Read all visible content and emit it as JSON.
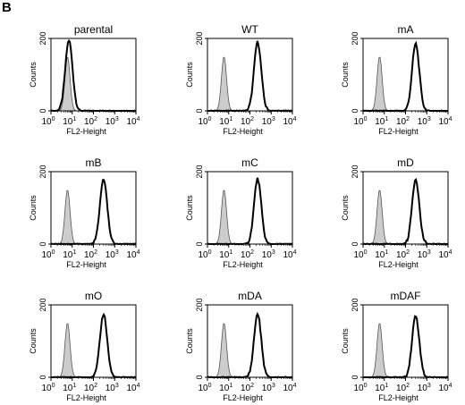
{
  "panel_label": "B",
  "chart_data": [
    {
      "type": "area",
      "title": "parental",
      "xlabel": "FL2-Height",
      "ylabel": "Counts",
      "x_scale": "log",
      "xlim": [
        1,
        10000
      ],
      "ylim": [
        0,
        200
      ],
      "xticks": [
        "10^0",
        "10^1",
        "10^2",
        "10^3",
        "10^4"
      ],
      "yticks": [
        0,
        200
      ],
      "grid": false,
      "series": [
        {
          "fill": "#cccccc",
          "peak_x": 6,
          "peak_y": 150
        },
        {
          "fill": "none",
          "peak_x": 7,
          "peak_y": 195
        }
      ]
    },
    {
      "type": "area",
      "title": "WT",
      "xlabel": "FL2-Height",
      "ylabel": "Counts",
      "x_scale": "log",
      "xlim": [
        1,
        10000
      ],
      "ylim": [
        0,
        200
      ],
      "xticks": [
        "10^0",
        "10^1",
        "10^2",
        "10^3",
        "10^4"
      ],
      "yticks": [
        0,
        200
      ],
      "grid": false,
      "series": [
        {
          "fill": "#cccccc",
          "peak_x": 6,
          "peak_y": 150
        },
        {
          "fill": "none",
          "peak_x": 230,
          "peak_y": 190
        }
      ]
    },
    {
      "type": "area",
      "title": "mA",
      "xlabel": "FL2-Height",
      "ylabel": "Counts",
      "x_scale": "log",
      "xlim": [
        1,
        10000
      ],
      "ylim": [
        0,
        200
      ],
      "xticks": [
        "10^0",
        "10^1",
        "10^2",
        "10^3",
        "10^4"
      ],
      "yticks": [
        0,
        200
      ],
      "grid": false,
      "series": [
        {
          "fill": "#cccccc",
          "peak_x": 6,
          "peak_y": 150
        },
        {
          "fill": "none",
          "peak_x": 300,
          "peak_y": 185
        }
      ]
    },
    {
      "type": "area",
      "title": "mB",
      "xlabel": "FL2-Height",
      "ylabel": "Counts",
      "x_scale": "log",
      "xlim": [
        1,
        10000
      ],
      "ylim": [
        0,
        200
      ],
      "xticks": [
        "10^0",
        "10^1",
        "10^2",
        "10^3",
        "10^4"
      ],
      "yticks": [
        0,
        200
      ],
      "grid": false,
      "series": [
        {
          "fill": "#cccccc",
          "peak_x": 6,
          "peak_y": 150
        },
        {
          "fill": "none",
          "peak_x": 300,
          "peak_y": 180
        }
      ]
    },
    {
      "type": "area",
      "title": "mC",
      "xlabel": "FL2-Height",
      "ylabel": "Counts",
      "x_scale": "log",
      "xlim": [
        1,
        10000
      ],
      "ylim": [
        0,
        200
      ],
      "xticks": [
        "10^0",
        "10^1",
        "10^2",
        "10^3",
        "10^4"
      ],
      "yticks": [
        0,
        200
      ],
      "grid": false,
      "series": [
        {
          "fill": "#cccccc",
          "peak_x": 6,
          "peak_y": 150
        },
        {
          "fill": "none",
          "peak_x": 230,
          "peak_y": 180
        }
      ]
    },
    {
      "type": "area",
      "title": "mD",
      "xlabel": "FL2-Height",
      "ylabel": "Counts",
      "x_scale": "log",
      "xlim": [
        1,
        10000
      ],
      "ylim": [
        0,
        200
      ],
      "xticks": [
        "10^0",
        "10^1",
        "10^2",
        "10^3",
        "10^4"
      ],
      "yticks": [
        0,
        200
      ],
      "grid": false,
      "series": [
        {
          "fill": "#cccccc",
          "peak_x": 6,
          "peak_y": 150
        },
        {
          "fill": "none",
          "peak_x": 300,
          "peak_y": 180
        }
      ]
    },
    {
      "type": "area",
      "title": "mO",
      "xlabel": "FL2-Height",
      "ylabel": "Counts",
      "x_scale": "log",
      "xlim": [
        1,
        10000
      ],
      "ylim": [
        0,
        200
      ],
      "xticks": [
        "10^0",
        "10^1",
        "10^2",
        "10^3",
        "10^4"
      ],
      "yticks": [
        0,
        200
      ],
      "grid": false,
      "series": [
        {
          "fill": "#cccccc",
          "peak_x": 6,
          "peak_y": 150
        },
        {
          "fill": "none",
          "peak_x": 300,
          "peak_y": 175
        }
      ]
    },
    {
      "type": "area",
      "title": "mDA",
      "xlabel": "FL2-Height",
      "ylabel": "Counts",
      "x_scale": "log",
      "xlim": [
        1,
        10000
      ],
      "ylim": [
        0,
        200
      ],
      "xticks": [
        "10^0",
        "10^1",
        "10^2",
        "10^3",
        "10^4"
      ],
      "yticks": [
        0,
        200
      ],
      "grid": false,
      "series": [
        {
          "fill": "#cccccc",
          "peak_x": 6,
          "peak_y": 150
        },
        {
          "fill": "none",
          "peak_x": 230,
          "peak_y": 175
        }
      ]
    },
    {
      "type": "area",
      "title": "mDAF",
      "xlabel": "FL2-Height",
      "ylabel": "Counts",
      "x_scale": "log",
      "xlim": [
        1,
        10000
      ],
      "ylim": [
        0,
        200
      ],
      "xticks": [
        "10^0",
        "10^1",
        "10^2",
        "10^3",
        "10^4"
      ],
      "yticks": [
        0,
        200
      ],
      "grid": false,
      "series": [
        {
          "fill": "#cccccc",
          "peak_x": 6,
          "peak_y": 150
        },
        {
          "fill": "none",
          "peak_x": 300,
          "peak_y": 170
        }
      ]
    }
  ]
}
